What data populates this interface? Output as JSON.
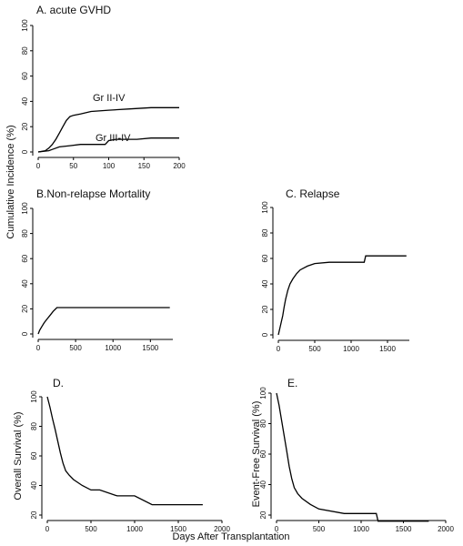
{
  "shared_ylabel": "Cumulative Incidence (%)",
  "xlabel": "Days After Transplantation",
  "chart_data": [
    {
      "type": "line",
      "title": "A. acute GVHD",
      "xlim": [
        0,
        200
      ],
      "xticks": [
        0,
        50,
        100,
        150,
        200
      ],
      "ylim": [
        0,
        100
      ],
      "yticks": [
        0,
        20,
        40,
        60,
        80,
        100
      ],
      "series": [
        {
          "name": "Gr II-IV",
          "x": [
            0,
            10,
            15,
            20,
            25,
            30,
            35,
            40,
            45,
            50,
            60,
            75,
            100,
            130,
            160,
            200
          ],
          "values": [
            0,
            1,
            3,
            6,
            10,
            15,
            20,
            25,
            28,
            29,
            30,
            32,
            33,
            34,
            35,
            35
          ]
        },
        {
          "name": "Gr III-IV",
          "x": [
            0,
            15,
            20,
            30,
            45,
            60,
            95,
            100,
            110,
            140,
            160,
            200
          ],
          "values": [
            0,
            1,
            2,
            4,
            5,
            6,
            6,
            9,
            10,
            10,
            11,
            11
          ]
        }
      ]
    },
    {
      "type": "line",
      "title": "B.Non-relapse Mortality",
      "xlim": [
        0,
        1800
      ],
      "xticks": [
        0,
        500,
        1000,
        1500
      ],
      "ylim": [
        0,
        100
      ],
      "yticks": [
        0,
        20,
        40,
        60,
        80,
        100
      ],
      "series": [
        {
          "x": [
            0,
            20,
            50,
            80,
            120,
            160,
            200,
            250,
            1760
          ],
          "values": [
            0,
            3,
            6,
            9,
            12,
            15,
            18,
            21,
            21
          ]
        }
      ]
    },
    {
      "type": "line",
      "title": "C.  Relapse",
      "xlim": [
        0,
        1800
      ],
      "xticks": [
        0,
        500,
        1000,
        1500
      ],
      "ylim": [
        0,
        100
      ],
      "yticks": [
        0,
        20,
        40,
        60,
        80,
        100
      ],
      "series": [
        {
          "x": [
            0,
            20,
            40,
            60,
            80,
            100,
            130,
            160,
            200,
            250,
            300,
            400,
            500,
            700,
            1180,
            1200,
            1760
          ],
          "values": [
            0,
            5,
            10,
            15,
            22,
            28,
            35,
            40,
            44,
            48,
            51,
            54,
            56,
            57,
            57,
            62,
            62
          ]
        }
      ]
    },
    {
      "type": "line",
      "title": "D.",
      "ylabel": "Overall Survival (%)",
      "xlim": [
        0,
        2000
      ],
      "xticks": [
        0,
        500,
        1000,
        1500,
        2000
      ],
      "ylim": [
        20,
        100
      ],
      "yticks": [
        20,
        40,
        60,
        80,
        100
      ],
      "series": [
        {
          "x": [
            0,
            30,
            60,
            90,
            120,
            150,
            180,
            210,
            250,
            300,
            400,
            500,
            600,
            800,
            1000,
            1200,
            1780
          ],
          "values": [
            100,
            93,
            85,
            78,
            70,
            62,
            55,
            50,
            47,
            44,
            40,
            37,
            37,
            33,
            33,
            27,
            27
          ]
        }
      ]
    },
    {
      "type": "line",
      "title": "E.",
      "ylabel": "Event-Free Survival (%)",
      "xlim": [
        0,
        2000
      ],
      "xticks": [
        0,
        500,
        1000,
        1500,
        2000
      ],
      "ylim": [
        20,
        100
      ],
      "yticks": [
        20,
        40,
        60,
        80,
        100
      ],
      "series": [
        {
          "x": [
            0,
            30,
            60,
            90,
            120,
            150,
            180,
            210,
            250,
            300,
            400,
            500,
            800,
            1180,
            1200,
            1800
          ],
          "values": [
            100,
            92,
            82,
            72,
            62,
            52,
            44,
            38,
            34,
            31,
            27,
            24,
            21,
            21,
            16,
            16
          ]
        }
      ]
    }
  ]
}
